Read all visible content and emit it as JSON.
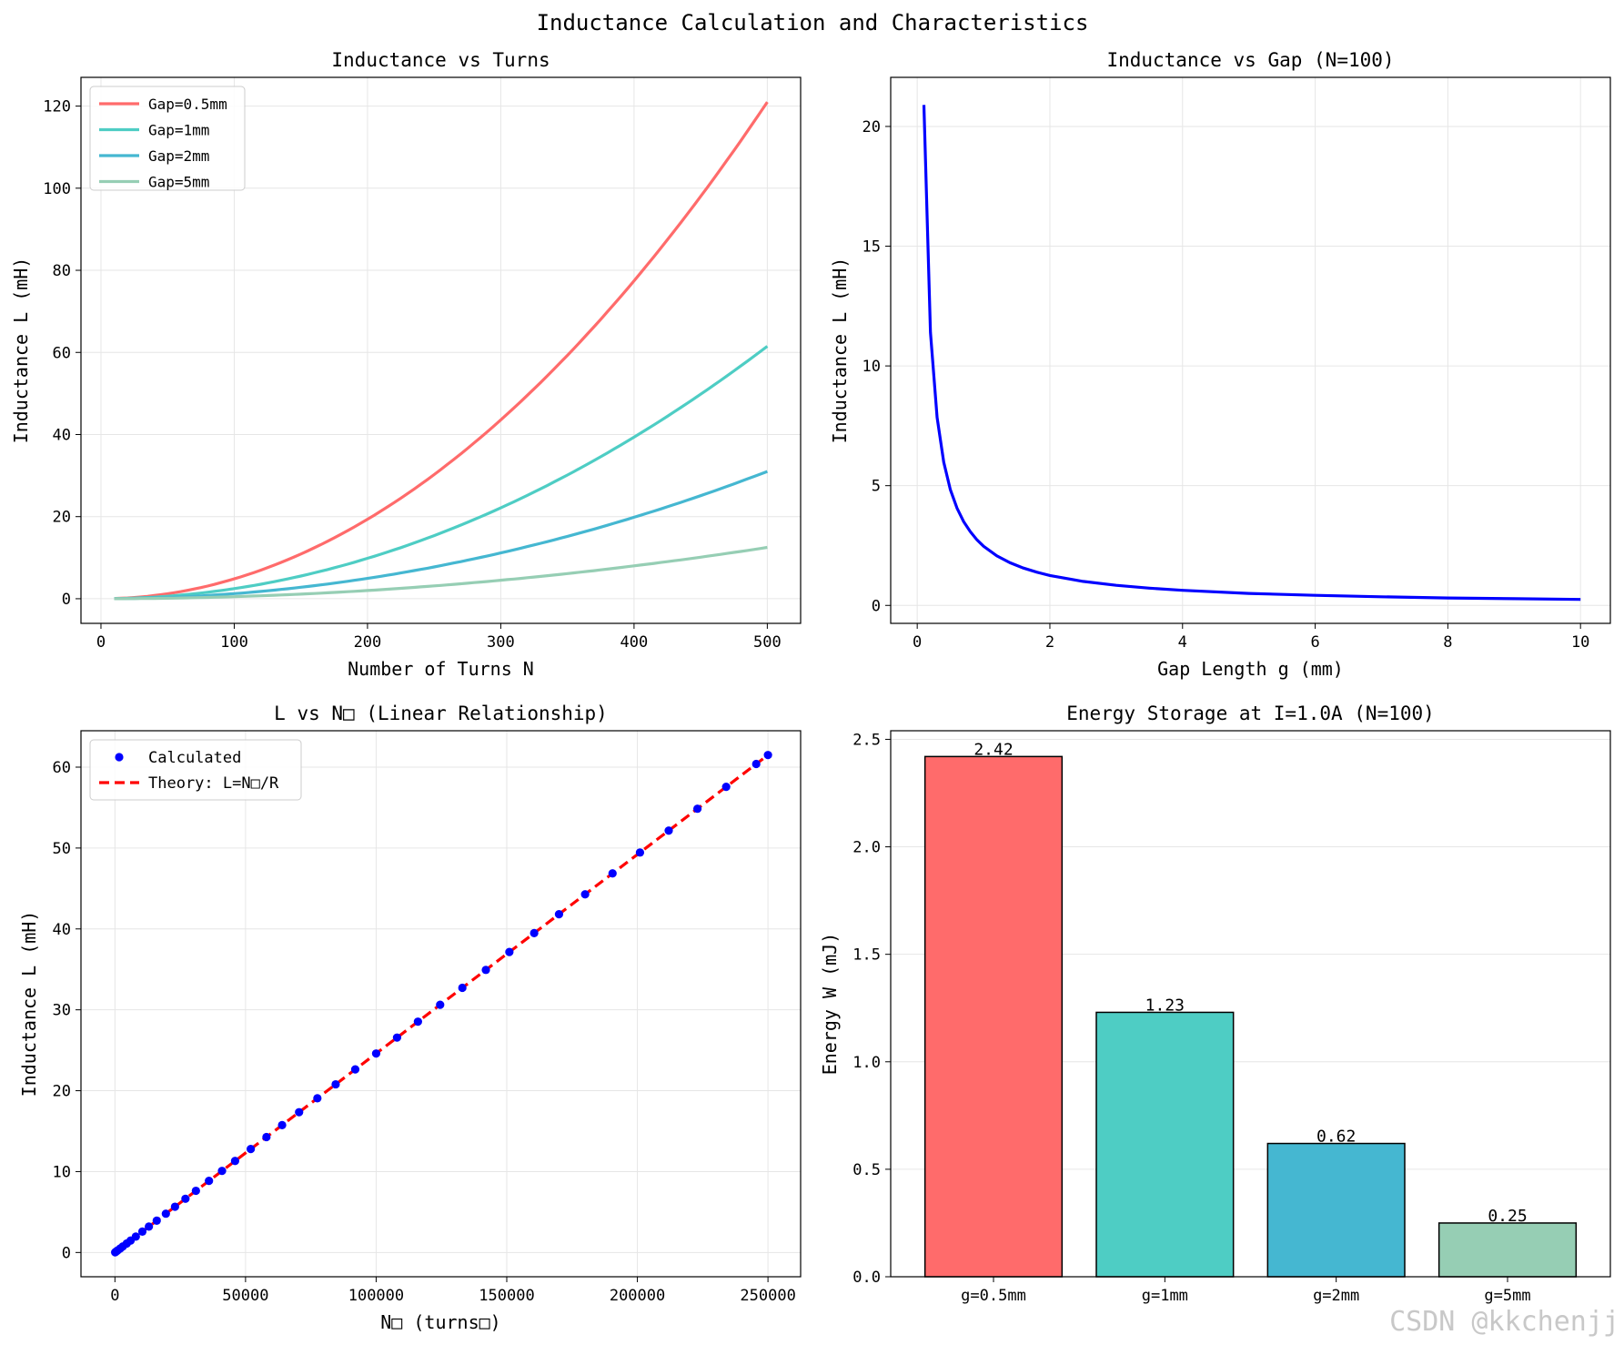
{
  "figure_title": "Inductance Calculation and Characteristics",
  "watermark": "CSDN @kkchenjj",
  "colors": {
    "gap_05": "#ff6b6b",
    "gap_1": "#4ecdc4",
    "gap_2": "#45b7d1",
    "gap_5": "#96ceb4",
    "blue": "#0000ff",
    "red_dashed": "#ff0000",
    "grid": "#e6e6e6"
  },
  "chart_data": [
    {
      "id": "turns",
      "type": "line",
      "title": "Inductance vs Turns",
      "xlabel": "Number of Turns N",
      "ylabel": "Inductance L (mH)",
      "xlim": [
        -15,
        525
      ],
      "ylim": [
        -6,
        127
      ],
      "xticks": [
        0,
        100,
        200,
        300,
        400,
        500
      ],
      "xtick_labels": [
        "0",
        "100",
        "200",
        "300",
        "400",
        "500"
      ],
      "yticks": [
        0,
        20,
        40,
        60,
        80,
        100,
        120
      ],
      "ytick_labels": [
        "0",
        "20",
        "40",
        "60",
        "80",
        "100",
        "120"
      ],
      "grid": true,
      "legend_position": "top-left",
      "x": [
        10,
        50,
        100,
        150,
        200,
        250,
        300,
        350,
        400,
        450,
        500
      ],
      "series": [
        {
          "name": "Gap=0.5mm",
          "color_key": "gap_05",
          "values": [
            0.05,
            1.21,
            4.84,
            10.89,
            19.36,
            30.25,
            43.56,
            59.29,
            77.44,
            98.01,
            121.0
          ]
        },
        {
          "name": "Gap=1mm",
          "color_key": "gap_1",
          "values": [
            0.02,
            0.62,
            2.46,
            5.54,
            9.84,
            15.38,
            22.14,
            30.14,
            39.36,
            49.82,
            61.5
          ]
        },
        {
          "name": "Gap=2mm",
          "color_key": "gap_2",
          "values": [
            0.01,
            0.31,
            1.24,
            2.79,
            4.96,
            7.75,
            11.16,
            15.19,
            19.84,
            25.11,
            31.0
          ]
        },
        {
          "name": "Gap=5mm",
          "color_key": "gap_5",
          "values": [
            0.005,
            0.13,
            0.5,
            1.13,
            2.0,
            3.13,
            4.5,
            6.13,
            8.0,
            10.13,
            12.5
          ]
        }
      ]
    },
    {
      "id": "gap",
      "type": "line",
      "title": "Inductance vs Gap (N=100)",
      "xlabel": "Gap Length g (mm)",
      "ylabel": "Inductance L (mH)",
      "xlim": [
        -0.4,
        10.45
      ],
      "ylim": [
        -0.75,
        22.05
      ],
      "xticks": [
        0,
        2,
        4,
        6,
        8,
        10
      ],
      "xtick_labels": [
        "0",
        "2",
        "4",
        "6",
        "8",
        "10"
      ],
      "yticks": [
        0,
        5,
        10,
        15,
        20
      ],
      "ytick_labels": [
        "0",
        "5",
        "10",
        "15",
        "20"
      ],
      "grid": true,
      "series": [
        {
          "name": "L",
          "color_key": "blue",
          "x": [
            0.1,
            0.2,
            0.3,
            0.4,
            0.5,
            0.6,
            0.7,
            0.8,
            0.9,
            1.0,
            1.2,
            1.4,
            1.6,
            1.8,
            2.0,
            2.5,
            3.0,
            3.5,
            4.0,
            5.0,
            6.0,
            7.0,
            8.0,
            9.0,
            10.0
          ],
          "values": [
            20.9,
            11.4,
            7.85,
            5.98,
            4.83,
            4.06,
            3.5,
            3.08,
            2.74,
            2.47,
            2.07,
            1.78,
            1.56,
            1.39,
            1.25,
            1.0,
            0.84,
            0.72,
            0.63,
            0.5,
            0.42,
            0.36,
            0.31,
            0.28,
            0.25
          ]
        }
      ]
    },
    {
      "id": "linear",
      "type": "line",
      "title": "L vs N□ (Linear Relationship)",
      "xlabel": "N□ (turns□)",
      "ylabel": "Inductance L (mH)",
      "xlim": [
        -13000,
        262500
      ],
      "ylim": [
        -3,
        64.5
      ],
      "xticks": [
        0,
        50000,
        100000,
        150000,
        200000,
        250000
      ],
      "xtick_labels": [
        "0",
        "50000",
        "100000",
        "150000",
        "200000",
        "250000"
      ],
      "yticks": [
        0,
        10,
        20,
        30,
        40,
        50,
        60
      ],
      "ytick_labels": [
        "0",
        "10",
        "20",
        "30",
        "40",
        "50",
        "60"
      ],
      "grid": true,
      "legend_position": "top-left",
      "slope": 0.000246,
      "points_x": [
        100,
        500,
        1000,
        2000,
        3000,
        4500,
        6000,
        8000,
        10500,
        13000,
        16000,
        19500,
        23000,
        27000,
        31000,
        36000,
        41000,
        46000,
        52000,
        58000,
        64000,
        70500,
        77500,
        84500,
        92000,
        100000,
        108000,
        116000,
        124500,
        133000,
        142000,
        151000,
        160500,
        170000,
        180000,
        190500,
        201000,
        212000,
        223000,
        234000,
        245500,
        250000
      ],
      "series": [
        {
          "name": "Calculated",
          "color_key": "blue",
          "style": "points"
        },
        {
          "name": "Theory: L=N□/R",
          "color_key": "red_dashed",
          "style": "dashed"
        }
      ]
    },
    {
      "id": "energy",
      "type": "bar",
      "title": "Energy Storage at I=1.0A (N=100)",
      "xlabel": "",
      "ylabel": "Energy W (mJ)",
      "ylim": [
        0,
        2.54
      ],
      "yticks": [
        0.0,
        0.5,
        1.0,
        1.5,
        2.0,
        2.5
      ],
      "ytick_labels": [
        "0.0",
        "0.5",
        "1.0",
        "1.5",
        "2.0",
        "2.5"
      ],
      "grid": true,
      "categories": [
        "g=0.5mm",
        "g=1mm",
        "g=2mm",
        "g=5mm"
      ],
      "values": [
        2.42,
        1.23,
        0.62,
        0.25
      ],
      "value_labels": [
        "2.42",
        "1.23",
        "0.62",
        "0.25"
      ],
      "color_keys": [
        "gap_05",
        "gap_1",
        "gap_2",
        "gap_5"
      ]
    }
  ]
}
